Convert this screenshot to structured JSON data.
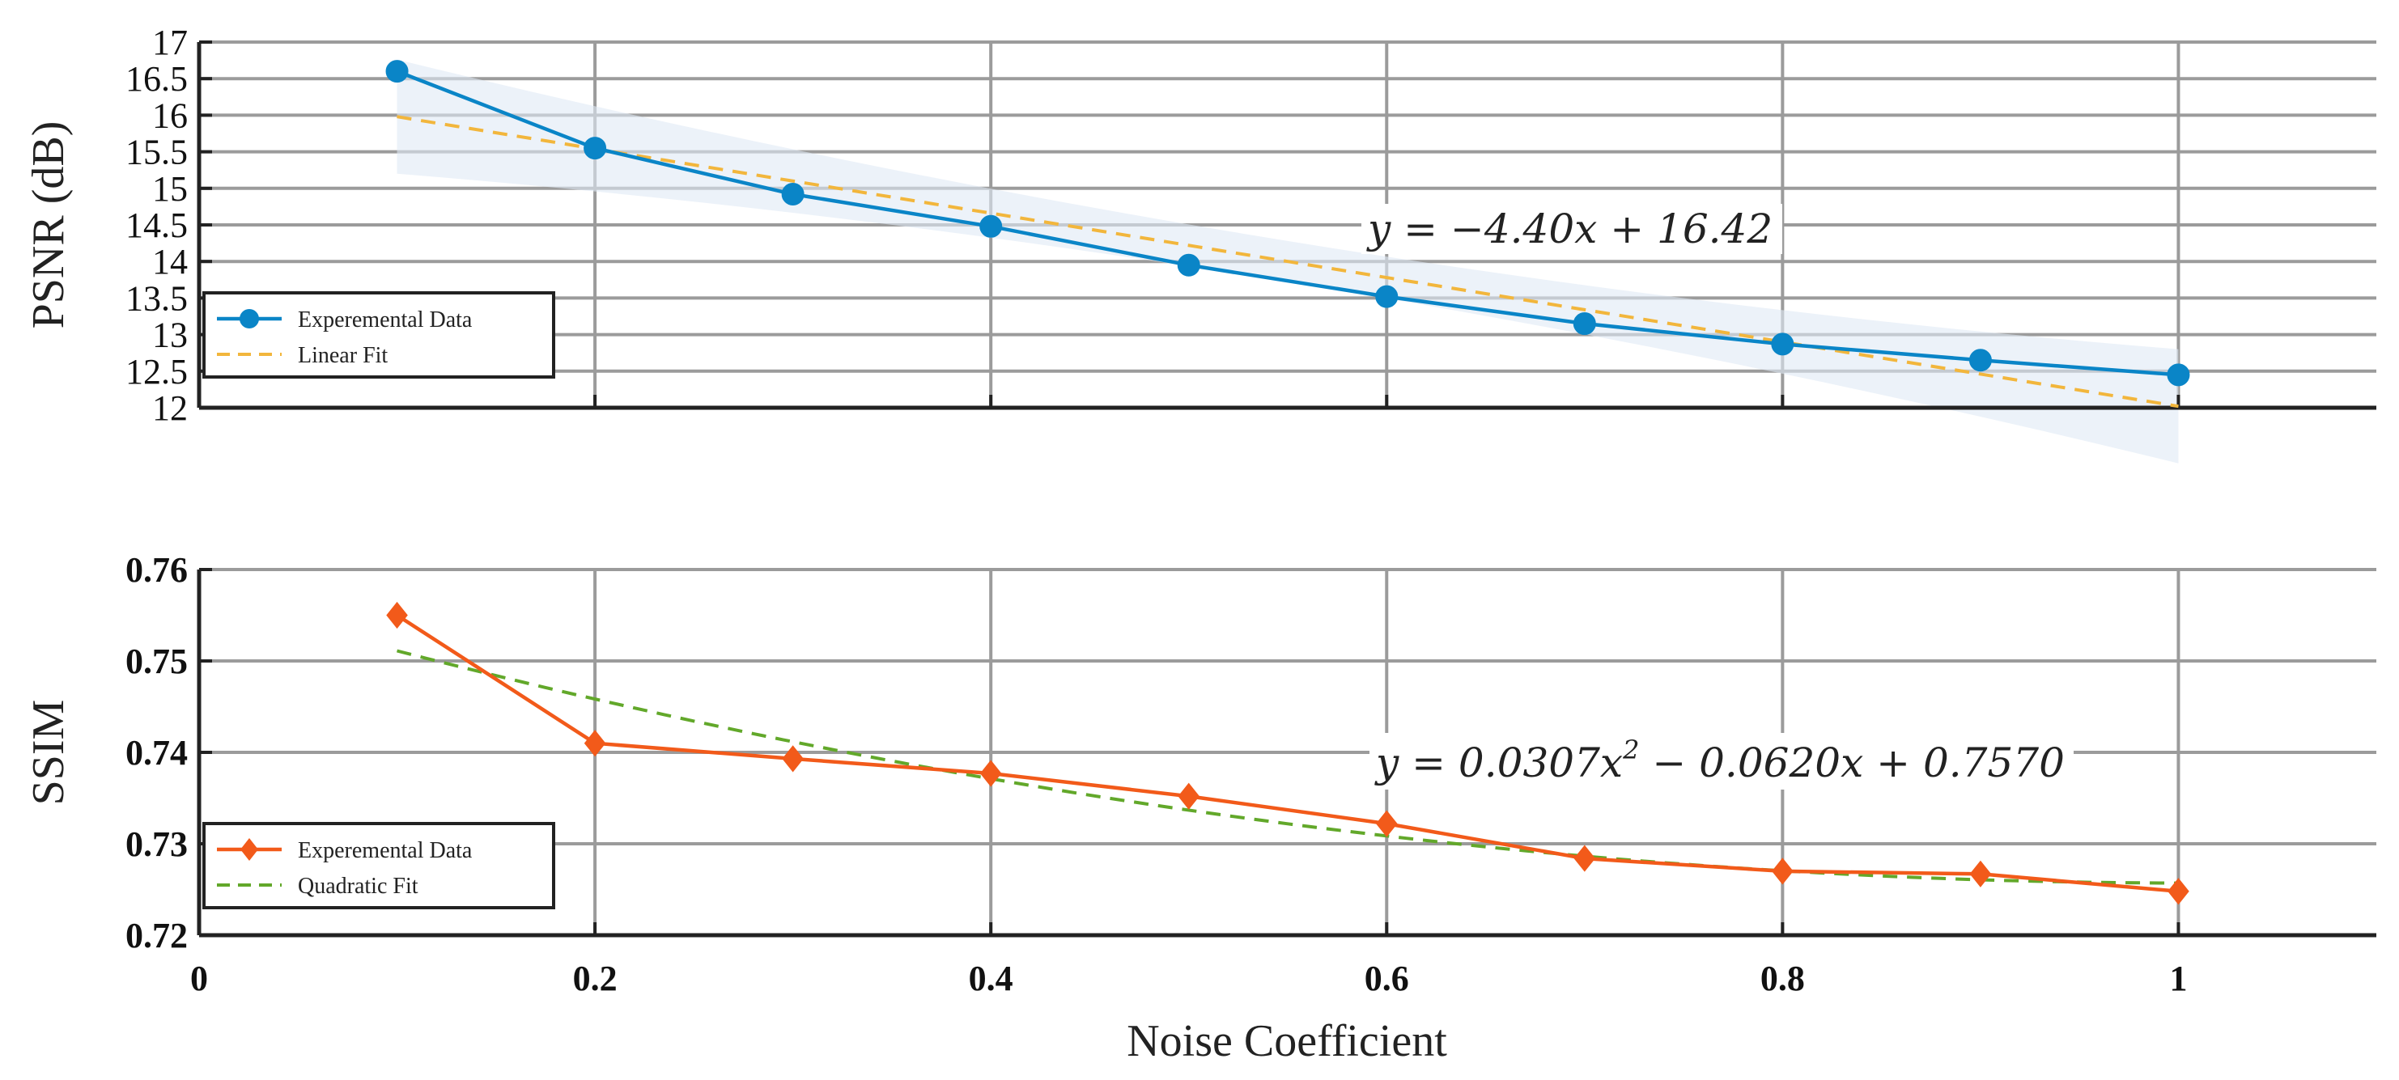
{
  "chart_data": [
    {
      "type": "line",
      "ylabel": "PSNR (dB)",
      "xlabel": "",
      "xlim": [
        0,
        1.1
      ],
      "ylim": [
        12,
        17
      ],
      "grid": true,
      "yticks": [
        "12",
        "12.5",
        "13",
        "13.5",
        "14",
        "14.5",
        "15",
        "15.5",
        "16",
        "16.5",
        "17"
      ],
      "xticks": [],
      "series": [
        {
          "name": "Experemental Data",
          "color": "#0a85c7",
          "marker": "circle",
          "x": [
            0.1,
            0.2,
            0.3,
            0.4,
            0.5,
            0.6,
            0.7,
            0.8,
            0.9,
            1.0
          ],
          "values": [
            16.6,
            15.55,
            14.92,
            14.48,
            13.95,
            13.52,
            13.15,
            12.87,
            12.65,
            12.45
          ]
        },
        {
          "name": "Linear Fit",
          "color": "#f2b63c",
          "dashed": true,
          "fit": {
            "kind": "linear",
            "coefficients": [
              -4.4,
              16.42
            ],
            "x_range": [
              0.1,
              1.0
            ]
          }
        }
      ],
      "annotation": "y = −4.40x + 16.42",
      "legend": "bottom-left"
    },
    {
      "type": "line",
      "ylabel": "SSIM",
      "xlabel": "Noise Coefficient",
      "xlim": [
        0,
        1.1
      ],
      "ylim": [
        0.72,
        0.76
      ],
      "grid": true,
      "yticks": [
        "0.72",
        "0.73",
        "0.74",
        "0.75",
        "0.76"
      ],
      "xticks": [
        "0",
        "0.2",
        "0.4",
        "0.6",
        "0.8",
        "1"
      ],
      "series": [
        {
          "name": "Experemental Data",
          "color": "#f25a1a",
          "marker": "diamond",
          "x": [
            0.1,
            0.2,
            0.3,
            0.4,
            0.5,
            0.6,
            0.7,
            0.8,
            0.9,
            1.0
          ],
          "values": [
            0.755,
            0.741,
            0.7393,
            0.7377,
            0.7352,
            0.7322,
            0.7284,
            0.727,
            0.7267,
            0.7248
          ]
        },
        {
          "name": "Quadratic Fit",
          "color": "#62a82a",
          "dashed": true,
          "fit": {
            "kind": "quadratic",
            "coefficients": [
              0.0307,
              -0.062,
              0.757
            ],
            "x_range": [
              0.1,
              1.0
            ]
          }
        }
      ],
      "annotation": {
        "prefix": "y = 0.0307x",
        "sup": "2",
        "suffix": " − 0.0620x + 0.7570"
      },
      "legend": "bottom-left"
    }
  ]
}
